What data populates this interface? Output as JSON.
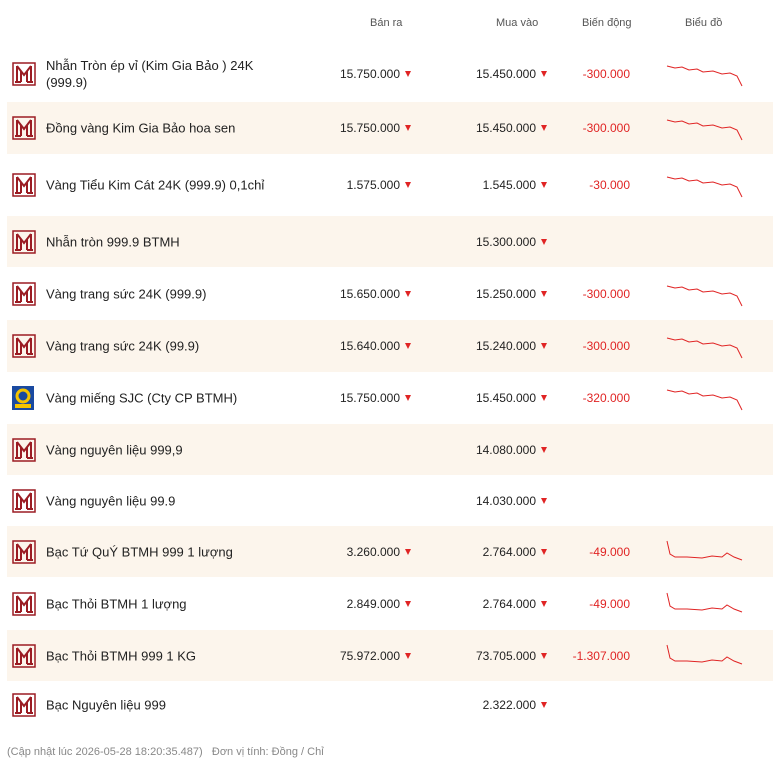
{
  "header": {
    "sell": "Bán ra",
    "buy": "Mua vào",
    "change": "Biến động",
    "chart": "Biểu đồ"
  },
  "rows": [
    {
      "name": "Nhẫn Tròn ép vỉ (Kim Gia Bảo ) 24K (999.9)",
      "sell": "15.750.000",
      "buy": "15.450.000",
      "change": "-300.000"
    },
    {
      "name": "Đồng vàng Kim Gia Bảo hoa sen",
      "sell": "15.750.000",
      "buy": "15.450.000",
      "change": "-300.000"
    },
    {
      "name": "Vàng Tiểu Kim Cát 24K (999.9) 0,1chỉ",
      "sell": "1.575.000",
      "buy": "1.545.000",
      "change": "-30.000"
    },
    {
      "name": "Nhẫn tròn 999.9 BTMH",
      "buy": "15.300.000"
    },
    {
      "name": "Vàng trang sức 24K (999.9)",
      "sell": "15.650.000",
      "buy": "15.250.000",
      "change": "-300.000"
    },
    {
      "name": "Vàng trang sức 24K (99.9)",
      "sell": "15.640.000",
      "buy": "15.240.000",
      "change": "-300.000"
    },
    {
      "name": "Vàng miếng SJC (Cty CP BTMH)",
      "sell": "15.750.000",
      "buy": "15.450.000",
      "change": "-320.000"
    },
    {
      "name": "Vàng nguyên liệu 999,9",
      "buy": "14.080.000"
    },
    {
      "name": "Vàng nguyên liệu 99.9",
      "buy": "14.030.000"
    },
    {
      "name": "Bạc Tứ QuÝ BTMH 999 1 lượng",
      "sell": "3.260.000",
      "buy": "2.764.000",
      "change": "-49.000"
    },
    {
      "name": "Bạc Thỏi BTMH 1 lượng",
      "sell": "2.849.000",
      "buy": "2.764.000",
      "change": "-49.000"
    },
    {
      "name": "Bạc Thỏi BTMH 999 1 KG",
      "sell": "75.972.000",
      "buy": "73.705.000",
      "change": "-1.307.000"
    },
    {
      "name": "Bạc Nguyên liệu 999",
      "buy": "2.322.000"
    }
  ],
  "footer": {
    "updated": "(Cập nhật lúc 2026-05-28 18:20:35.487)",
    "unit": "Đơn vị tính: Đồng / Chỉ"
  }
}
